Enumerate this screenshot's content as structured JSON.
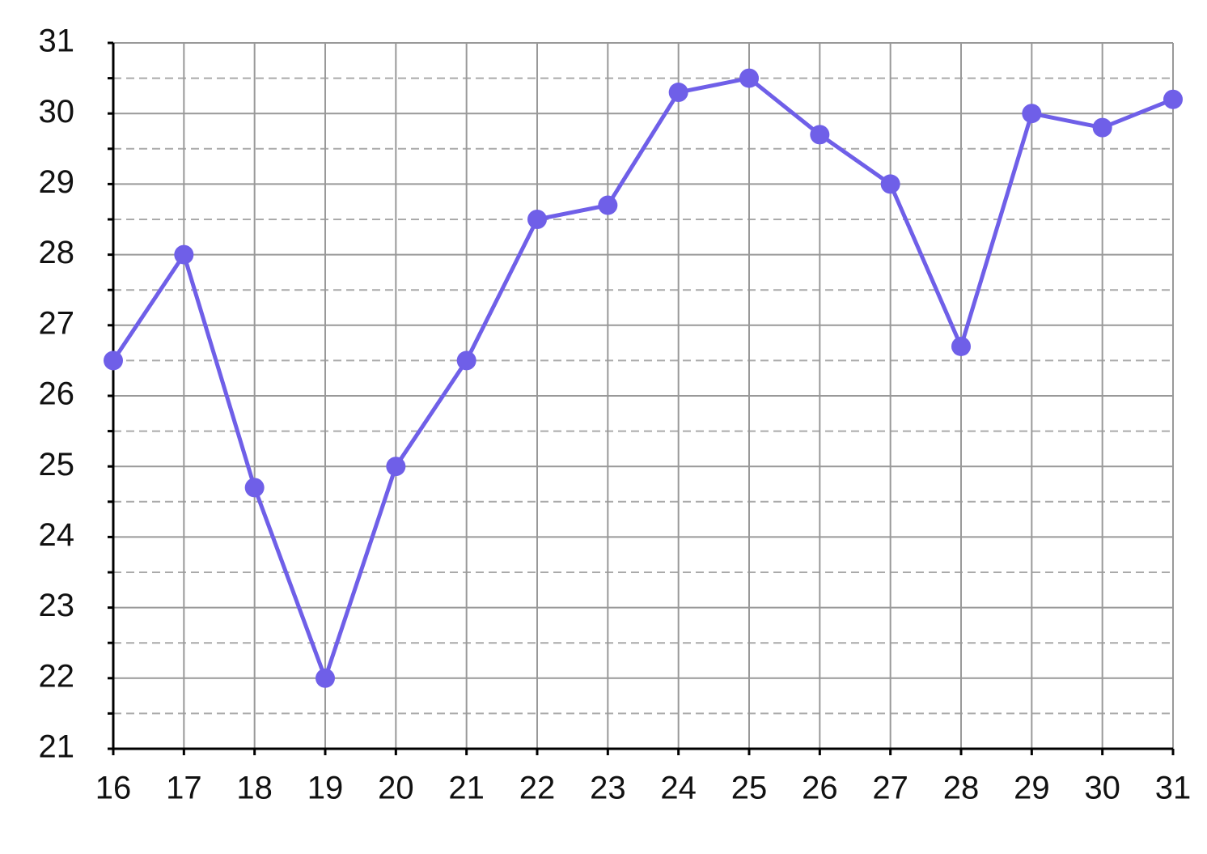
{
  "chart_data": {
    "type": "line",
    "x": [
      16,
      17,
      18,
      19,
      20,
      21,
      22,
      23,
      24,
      25,
      26,
      27,
      28,
      29,
      30,
      31
    ],
    "series": [
      {
        "color": "#6f5fe8",
        "values": [
          26.5,
          28,
          24.7,
          22,
          25,
          26.5,
          28.5,
          28.7,
          30.3,
          30.5,
          29.7,
          29,
          26.7,
          30,
          29.8,
          30.2
        ]
      }
    ],
    "xlim": [
      16,
      31
    ],
    "xticks": [
      16,
      17,
      18,
      19,
      20,
      21,
      22,
      23,
      24,
      25,
      26,
      27,
      28,
      29,
      30,
      31
    ],
    "ylim": [
      21,
      31
    ],
    "yticks": [
      21,
      22,
      23,
      24,
      25,
      26,
      27,
      28,
      29,
      30,
      31
    ],
    "minor_yticks": [
      21.5,
      22.5,
      23.5,
      24.5,
      25.5,
      26.5,
      27.5,
      28.5,
      29.5,
      30.5
    ],
    "grid": true
  }
}
